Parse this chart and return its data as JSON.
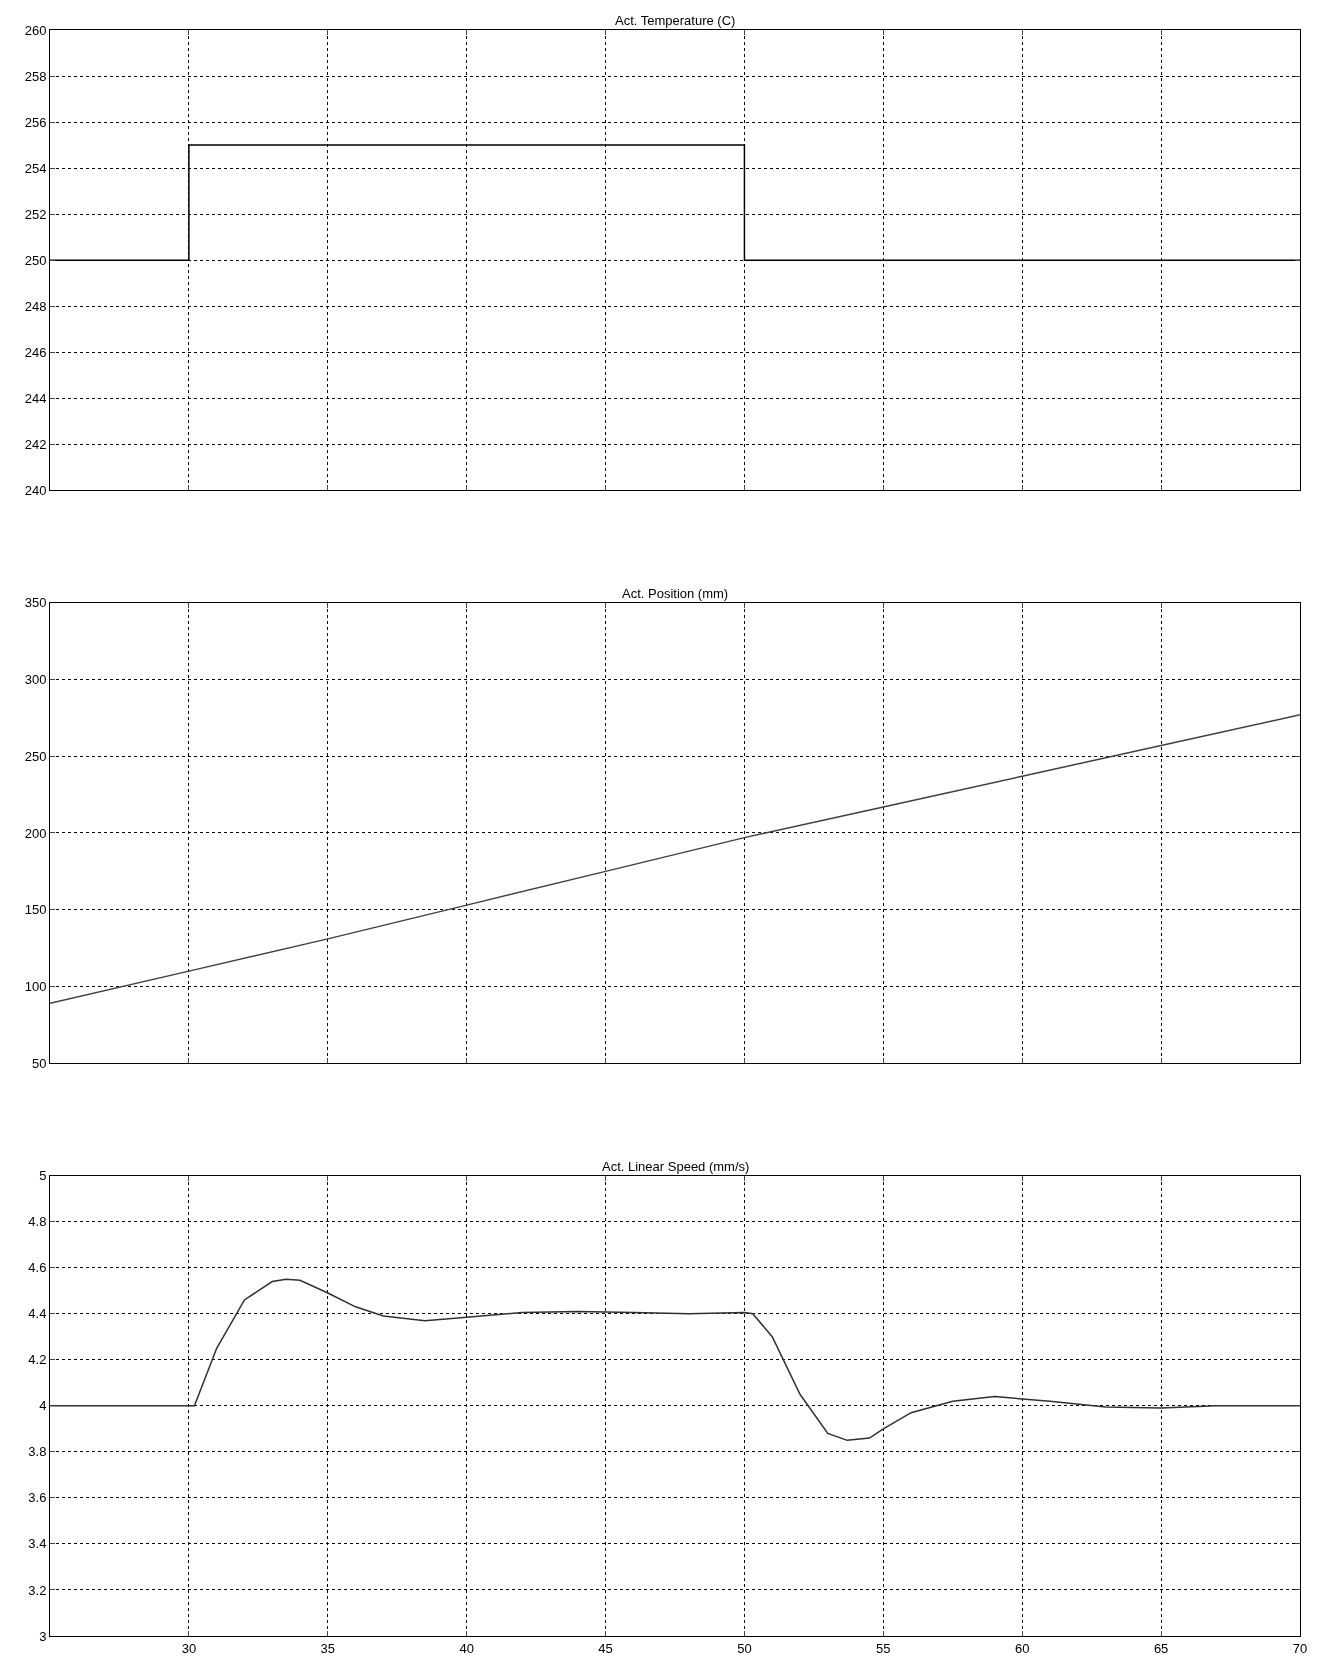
{
  "chart_data": [
    {
      "type": "line",
      "title": "Act. Temperature (C)",
      "x": [
        25,
        30,
        30,
        50,
        50,
        70
      ],
      "series": [
        {
          "color": "#000000",
          "values": [
            250,
            250,
            255,
            255,
            250,
            250
          ]
        }
      ],
      "xlim": [
        25,
        70
      ],
      "xticks": [
        30,
        35,
        40,
        45,
        50,
        55,
        60,
        65,
        70
      ],
      "ylim": [
        240,
        260
      ],
      "yticks": [
        240,
        242,
        244,
        246,
        248,
        250,
        252,
        254,
        256,
        258,
        260
      ],
      "grid": true,
      "tick_labels": "y",
      "line_style": "solid"
    },
    {
      "type": "line",
      "title": "Act. Position (mm)",
      "x": [
        25,
        30,
        35,
        40,
        45,
        50,
        55,
        60,
        65,
        70
      ],
      "series": [
        {
          "color": "#404040",
          "values": [
            89,
            110,
            131,
            153,
            175,
            197,
            217,
            237,
            257,
            277
          ]
        }
      ],
      "xlim": [
        25,
        70
      ],
      "xticks": [
        30,
        35,
        40,
        45,
        50,
        55,
        60,
        65,
        70
      ],
      "ylim": [
        50,
        350
      ],
      "yticks": [
        50,
        100,
        150,
        200,
        250,
        300,
        350
      ],
      "grid": true,
      "tick_labels": "y",
      "line_style": "solid"
    },
    {
      "type": "line",
      "title": "Act. Linear Speed (mm/s)",
      "x": [
        25,
        30.2,
        31,
        32,
        33,
        33.5,
        34,
        35,
        36,
        37,
        38.5,
        40,
        42,
        44,
        46,
        48,
        50,
        50.3,
        51,
        52,
        53,
        53.7,
        54.5,
        55,
        56,
        57.5,
        59,
        61,
        63,
        65,
        67,
        70
      ],
      "series": [
        {
          "color": "#303030",
          "values": [
            4.0,
            4.0,
            4.25,
            4.46,
            4.54,
            4.55,
            4.545,
            4.49,
            4.43,
            4.39,
            4.37,
            4.385,
            4.405,
            4.41,
            4.405,
            4.4,
            4.405,
            4.4,
            4.3,
            4.05,
            3.88,
            3.85,
            3.86,
            3.9,
            3.97,
            4.02,
            4.04,
            4.02,
            3.995,
            3.99,
            4.0,
            4.0
          ]
        }
      ],
      "xlim": [
        25,
        70
      ],
      "xticks": [
        30,
        35,
        40,
        45,
        50,
        55,
        60,
        65,
        70
      ],
      "ylim": [
        3,
        5
      ],
      "yticks": [
        3,
        3.2,
        3.4,
        3.6,
        3.8,
        4,
        4.2,
        4.4,
        4.6,
        4.8,
        5
      ],
      "grid": true,
      "line_style": "solid"
    }
  ]
}
